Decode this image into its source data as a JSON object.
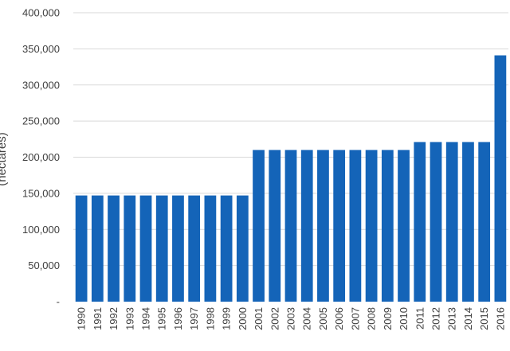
{
  "chart_data": {
    "type": "bar",
    "categories": [
      "1990",
      "1991",
      "1992",
      "1993",
      "1994",
      "1995",
      "1996",
      "1997",
      "1998",
      "1999",
      "2000",
      "2001",
      "2002",
      "2003",
      "2004",
      "2005",
      "2006",
      "2007",
      "2008",
      "2009",
      "2010",
      "2011",
      "2012",
      "2013",
      "2014",
      "2015",
      "2016"
    ],
    "values": [
      147000,
      147000,
      147000,
      147000,
      147000,
      147000,
      147000,
      147000,
      147000,
      147000,
      147000,
      210000,
      210000,
      210000,
      210000,
      210000,
      210000,
      210000,
      210000,
      210000,
      210000,
      221000,
      221000,
      221000,
      221000,
      221000,
      341000
    ],
    "ylabel": "(hectares)",
    "ylim": [
      0,
      400000
    ],
    "yticks": [
      0,
      50000,
      100000,
      150000,
      200000,
      250000,
      300000,
      350000,
      400000
    ],
    "ytick_labels": [
      "-",
      "50,000",
      "100,000",
      "150,000",
      "200,000",
      "250,000",
      "300,000",
      "350,000",
      "400,000"
    ],
    "grid": true,
    "bar_color": "#1464b8",
    "grid_color": "#d9d9d9"
  }
}
